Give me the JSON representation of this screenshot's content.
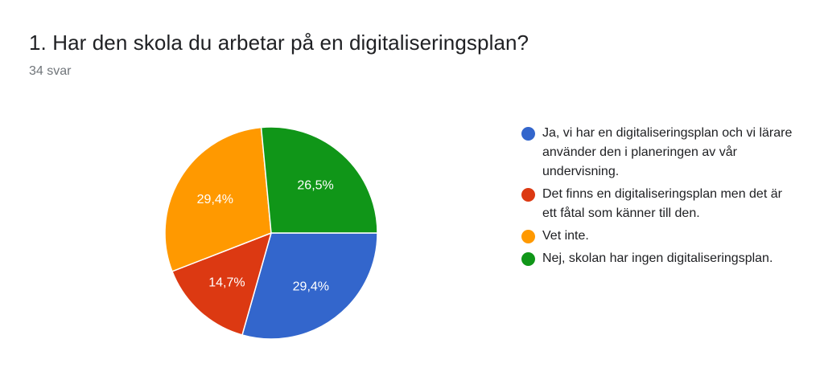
{
  "header": {
    "title": "1. Har den skola du arbetar på en digitaliseringsplan?",
    "responses": "34 svar"
  },
  "chart_data": {
    "type": "pie",
    "title": "1. Har den skola du arbetar på en digitaliseringsplan?",
    "subtitle": "34 svar",
    "legend_position": "right",
    "slices": [
      {
        "label": "Ja, vi har en digitaliseringsplan och vi lärare använder den i planeringen av vår undervisning.",
        "value": 29.4,
        "display": "29,4%",
        "color": "#3366cc"
      },
      {
        "label": "Det finns en digitaliseringsplan men det är ett fåtal som känner till den.",
        "value": 14.7,
        "display": "14,7%",
        "color": "#dc3912"
      },
      {
        "label": "Vet inte.",
        "value": 29.4,
        "display": "29,4%",
        "color": "#ff9900"
      },
      {
        "label": "Nej, skolan har ingen digitaliseringsplan.",
        "value": 26.5,
        "display": "26,5%",
        "color": "#109618"
      }
    ]
  }
}
